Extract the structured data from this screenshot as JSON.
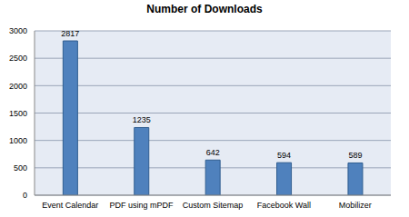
{
  "chart_data": {
    "type": "bar",
    "title": "Number of Downloads",
    "categories": [
      "Event Calendar",
      "PDF using mPDF",
      "Custom Sitemap",
      "Facebook Wall",
      "Mobilizer"
    ],
    "values": [
      2817,
      1235,
      642,
      594,
      589
    ],
    "color": "#4f81bd",
    "ylim": [
      0,
      3000
    ],
    "yticks": [
      0,
      500,
      1000,
      1500,
      2000,
      2500,
      3000
    ],
    "grid": true,
    "data_labels": true
  }
}
